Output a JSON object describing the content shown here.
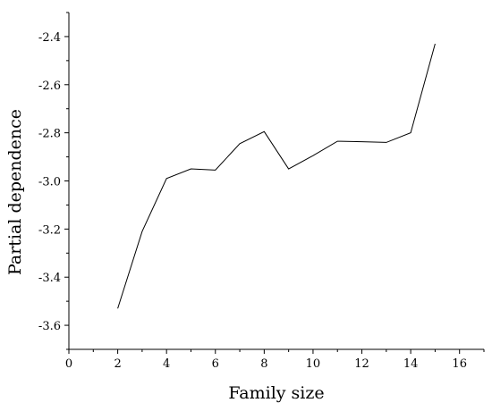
{
  "chart_data": {
    "type": "line",
    "title": "",
    "xlabel": "Family size",
    "ylabel": "Partial dependence",
    "xlim": [
      0,
      17
    ],
    "ylim": [
      -3.7,
      -2.3
    ],
    "x_ticks": [
      0,
      2,
      4,
      6,
      8,
      10,
      12,
      14,
      16
    ],
    "y_ticks": [
      -3.6,
      -3.4,
      -3.2,
      -3.0,
      -2.8,
      -2.6,
      -2.4
    ],
    "x_tick_labels": [
      "0",
      "2",
      "4",
      "6",
      "8",
      "10",
      "12",
      "14",
      "16"
    ],
    "y_tick_labels": [
      "-3.6",
      "-3.4",
      "-3.2",
      "-3.0",
      "-2.8",
      "-2.6",
      "-2.4"
    ],
    "grid": false,
    "legend": "none",
    "color": "#000000",
    "series": [
      {
        "x": [
          2,
          3,
          4,
          5,
          6,
          7,
          8,
          9,
          10,
          11,
          12,
          13,
          14,
          15
        ],
        "y": [
          -3.53,
          -3.21,
          -2.99,
          -2.95,
          -2.955,
          -2.845,
          -2.795,
          -2.95,
          -2.895,
          -2.835,
          -2.837,
          -2.84,
          -2.8,
          -2.43
        ]
      }
    ]
  }
}
